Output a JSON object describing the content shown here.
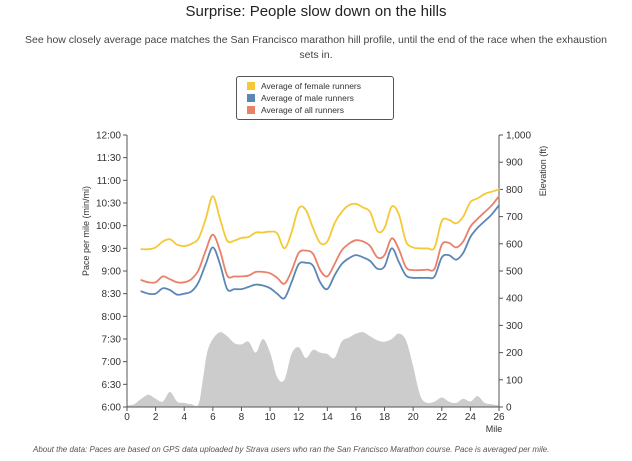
{
  "title": "Surprise: People slow down on the hills",
  "subtitle": "See how closely average pace matches the San Francisco marathon hill profile, until the end of the race when the exhaustion sets in.",
  "footnote": "About the data: Paces are based on GPS data uploaded by Strava users who ran the San Francisco Marathon course. Pace is averaged per mile.",
  "colors": {
    "female": "#f5c935",
    "male": "#5b86b5",
    "all": "#e8806a",
    "elevation": "#cccccc",
    "axis": "#555555"
  },
  "chart_data": {
    "type": "line",
    "title": "Surprise: People slow down on the hills",
    "xlabel": "Mile",
    "ylabel_left": "Pace per mile (min/mi)",
    "ylabel_right": "Elevation (ft)",
    "xlim": [
      0,
      26
    ],
    "x_ticks": [
      "0",
      "2",
      "4",
      "6",
      "8",
      "10",
      "12",
      "14",
      "16",
      "18",
      "20",
      "22",
      "24",
      "26"
    ],
    "y_left_ticks": [
      "6:00",
      "6:30",
      "7:00",
      "7:30",
      "8:00",
      "8:30",
      "9:00",
      "9:30",
      "10:00",
      "10:30",
      "11:00",
      "11:30",
      "12:00"
    ],
    "y_right_ticks": [
      "0",
      "100",
      "200",
      "300",
      "400",
      "500",
      "600",
      "700",
      "800",
      "900",
      "1,000"
    ],
    "ylim_left_minutes": [
      6,
      12
    ],
    "ylim_right_feet": [
      0,
      1000
    ],
    "legend_position": "top-center",
    "x": [
      1,
      1.5,
      2,
      2.5,
      3,
      3.5,
      4,
      4.5,
      5,
      5.5,
      6,
      6.5,
      7,
      7.5,
      8,
      8.5,
      9,
      9.5,
      10,
      10.5,
      11,
      11.5,
      12,
      12.5,
      13,
      13.5,
      14,
      14.5,
      15,
      15.5,
      16,
      16.5,
      17,
      17.5,
      18,
      18.5,
      19,
      19.5,
      20,
      20.5,
      21,
      21.5,
      22,
      22.5,
      23,
      23.5,
      24,
      24.5,
      25,
      25.5,
      26
    ],
    "series": [
      {
        "name": "Average of female runners",
        "color_key": "female",
        "values": [
          9.48,
          9.48,
          9.52,
          9.65,
          9.7,
          9.58,
          9.55,
          9.6,
          9.72,
          10.15,
          10.65,
          10.15,
          9.67,
          9.67,
          9.73,
          9.75,
          9.85,
          9.85,
          9.87,
          9.83,
          9.5,
          9.85,
          10.38,
          10.35,
          9.95,
          9.62,
          9.65,
          10.05,
          10.3,
          10.45,
          10.48,
          10.4,
          10.3,
          9.88,
          9.95,
          10.42,
          10.25,
          9.65,
          9.52,
          9.5,
          9.5,
          9.52,
          10.1,
          10.13,
          10.05,
          10.2,
          10.52,
          10.6,
          10.7,
          10.75,
          10.8
        ]
      },
      {
        "name": "Average of male runners",
        "color_key": "male",
        "values": [
          8.55,
          8.5,
          8.5,
          8.62,
          8.58,
          8.48,
          8.5,
          8.55,
          8.75,
          9.15,
          9.52,
          9.15,
          8.6,
          8.6,
          8.6,
          8.65,
          8.7,
          8.68,
          8.62,
          8.5,
          8.4,
          8.75,
          9.15,
          9.18,
          9.12,
          8.75,
          8.6,
          8.9,
          9.15,
          9.28,
          9.35,
          9.3,
          9.22,
          9.05,
          9.1,
          9.5,
          9.2,
          8.9,
          8.85,
          8.85,
          8.85,
          8.88,
          9.3,
          9.35,
          9.25,
          9.4,
          9.75,
          9.95,
          10.1,
          10.25,
          10.45
        ]
      },
      {
        "name": "Average of all runners",
        "color_key": "all",
        "values": [
          8.8,
          8.75,
          8.75,
          8.88,
          8.82,
          8.75,
          8.75,
          8.82,
          9.02,
          9.45,
          9.8,
          9.45,
          8.9,
          8.88,
          8.88,
          8.9,
          8.98,
          8.98,
          8.95,
          8.85,
          8.72,
          9.0,
          9.4,
          9.45,
          9.38,
          9.02,
          8.88,
          9.15,
          9.45,
          9.6,
          9.68,
          9.65,
          9.55,
          9.3,
          9.35,
          9.72,
          9.48,
          9.08,
          9.02,
          9.02,
          9.03,
          9.05,
          9.58,
          9.62,
          9.52,
          9.65,
          9.98,
          10.15,
          10.3,
          10.45,
          10.65
        ]
      }
    ],
    "elevation": {
      "name": "Elevation",
      "x": [
        0,
        0.5,
        1,
        1.5,
        2,
        2.5,
        3,
        3.5,
        4,
        4.5,
        5,
        5.3,
        5.6,
        6,
        6.5,
        7,
        7.5,
        8,
        8.5,
        9,
        9.5,
        10,
        10.5,
        11,
        11.5,
        12,
        12.5,
        13,
        13.5,
        14,
        14.5,
        15,
        15.5,
        16,
        16.5,
        17,
        17.5,
        18,
        18.5,
        19,
        19.5,
        20,
        20.3,
        20.6,
        21,
        21.5,
        22,
        22.5,
        23,
        23.5,
        24,
        24.5,
        25,
        25.5,
        26
      ],
      "values": [
        5,
        10,
        30,
        45,
        30,
        20,
        55,
        20,
        15,
        10,
        10,
        100,
        200,
        250,
        275,
        260,
        235,
        230,
        240,
        200,
        250,
        200,
        110,
        100,
        195,
        220,
        180,
        210,
        200,
        195,
        180,
        240,
        255,
        270,
        275,
        260,
        245,
        240,
        250,
        270,
        245,
        150,
        80,
        30,
        15,
        20,
        35,
        20,
        15,
        30,
        20,
        40,
        15,
        10,
        5
      ]
    }
  }
}
